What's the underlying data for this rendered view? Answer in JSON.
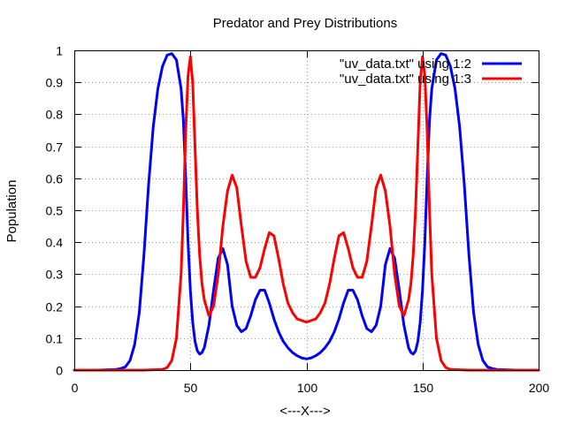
{
  "chart_data": {
    "type": "line",
    "title": "Predator and Prey Distributions",
    "xlabel": "<---X--->",
    "ylabel": "Population",
    "xlim": [
      0,
      200
    ],
    "ylim": [
      0,
      1
    ],
    "xticks": [
      0,
      50,
      100,
      150,
      200
    ],
    "xtick_labels": [
      "0",
      "50",
      "100",
      "150",
      "200"
    ],
    "yticks": [
      0,
      0.1,
      0.2,
      0.3,
      0.4,
      0.5,
      0.6,
      0.7,
      0.8,
      0.9,
      1
    ],
    "ytick_labels": [
      "0",
      "0.1",
      "0.2",
      "0.3",
      "0.4",
      "0.5",
      "0.6",
      "0.7",
      "0.8",
      "0.9",
      "1"
    ],
    "grid": true,
    "legend_position": "top-right",
    "series": [
      {
        "name": "\"uv_data.txt\" using 1:2",
        "color": "#0000ff",
        "x": [
          0,
          10,
          18,
          20,
          22,
          24,
          26,
          28,
          30,
          32,
          34,
          36,
          38,
          40,
          42,
          44,
          46,
          47,
          48,
          49,
          50,
          51,
          52,
          53,
          54,
          55,
          56,
          58,
          60,
          62,
          64,
          66,
          68,
          70,
          72,
          74,
          76,
          78,
          80,
          82,
          84,
          86,
          88,
          90,
          92,
          94,
          96,
          98,
          100,
          102,
          104,
          106,
          108,
          110,
          112,
          114,
          116,
          118,
          120,
          122,
          124,
          126,
          128,
          130,
          132,
          134,
          136,
          138,
          140,
          142,
          144,
          145,
          146,
          147,
          148,
          149,
          150,
          151,
          152,
          153,
          154,
          156,
          158,
          160,
          162,
          164,
          166,
          168,
          170,
          172,
          174,
          176,
          178,
          180,
          182,
          190,
          200
        ],
        "values": [
          0,
          0,
          0.002,
          0.005,
          0.01,
          0.03,
          0.08,
          0.18,
          0.36,
          0.58,
          0.76,
          0.88,
          0.95,
          0.985,
          0.99,
          0.97,
          0.88,
          0.78,
          0.6,
          0.4,
          0.25,
          0.15,
          0.09,
          0.06,
          0.05,
          0.055,
          0.07,
          0.14,
          0.25,
          0.35,
          0.38,
          0.33,
          0.2,
          0.14,
          0.12,
          0.13,
          0.17,
          0.22,
          0.25,
          0.25,
          0.21,
          0.16,
          0.12,
          0.09,
          0.07,
          0.055,
          0.045,
          0.038,
          0.035,
          0.038,
          0.045,
          0.055,
          0.07,
          0.09,
          0.12,
          0.16,
          0.21,
          0.25,
          0.25,
          0.22,
          0.17,
          0.13,
          0.12,
          0.14,
          0.2,
          0.33,
          0.38,
          0.35,
          0.25,
          0.14,
          0.07,
          0.055,
          0.05,
          0.06,
          0.09,
          0.15,
          0.25,
          0.4,
          0.6,
          0.78,
          0.88,
          0.97,
          0.99,
          0.985,
          0.95,
          0.88,
          0.76,
          0.58,
          0.36,
          0.18,
          0.08,
          0.03,
          0.01,
          0.005,
          0.002,
          0,
          0
        ]
      },
      {
        "name": "\"uv_data.txt\" using 1:3",
        "color": "#ff0000",
        "x": [
          0,
          30,
          38,
          40,
          42,
          44,
          46,
          47,
          48,
          49,
          50,
          51,
          52,
          53,
          54,
          55,
          56,
          58,
          60,
          62,
          64,
          66,
          68,
          70,
          72,
          74,
          76,
          78,
          80,
          82,
          84,
          86,
          88,
          90,
          92,
          94,
          96,
          98,
          100,
          102,
          104,
          106,
          108,
          110,
          112,
          114,
          116,
          118,
          120,
          122,
          124,
          126,
          128,
          130,
          132,
          134,
          136,
          138,
          140,
          142,
          144,
          145,
          146,
          147,
          148,
          149,
          150,
          151,
          152,
          153,
          154,
          156,
          158,
          160,
          162,
          170,
          200
        ],
        "values": [
          0,
          0,
          0.002,
          0.008,
          0.03,
          0.1,
          0.3,
          0.5,
          0.75,
          0.92,
          0.98,
          0.9,
          0.7,
          0.5,
          0.36,
          0.27,
          0.22,
          0.17,
          0.2,
          0.3,
          0.45,
          0.56,
          0.61,
          0.57,
          0.45,
          0.34,
          0.29,
          0.29,
          0.32,
          0.38,
          0.43,
          0.42,
          0.35,
          0.27,
          0.21,
          0.18,
          0.16,
          0.155,
          0.15,
          0.155,
          0.16,
          0.18,
          0.21,
          0.27,
          0.35,
          0.42,
          0.43,
          0.38,
          0.32,
          0.29,
          0.29,
          0.34,
          0.45,
          0.57,
          0.61,
          0.56,
          0.45,
          0.3,
          0.2,
          0.17,
          0.22,
          0.27,
          0.36,
          0.5,
          0.7,
          0.9,
          0.98,
          0.92,
          0.75,
          0.5,
          0.3,
          0.1,
          0.03,
          0.008,
          0.002,
          0,
          0
        ]
      }
    ]
  }
}
